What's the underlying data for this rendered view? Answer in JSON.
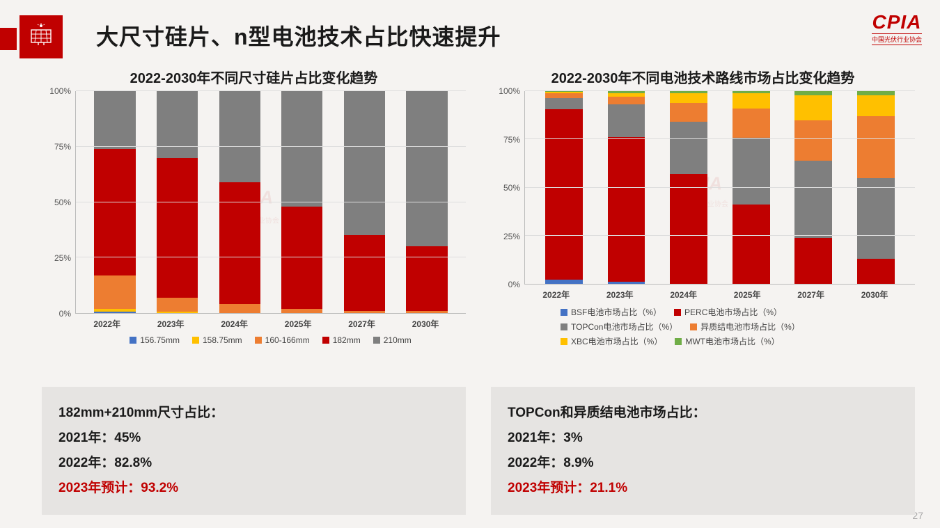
{
  "page": {
    "title": "大尺寸硅片、n型电池技术占比快速提升",
    "page_number": "27",
    "logo_main": "CPIA",
    "logo_sub": "中国光伏行业协会"
  },
  "colors": {
    "accent": "#c00000",
    "bg": "#f5f3f1",
    "footnote_bg": "#e6e4e2",
    "blue": "#4472c4",
    "yellow": "#ffc000",
    "orange": "#ed7d31",
    "red": "#c00000",
    "grey": "#7f7f7f",
    "green": "#70ad47"
  },
  "chart_left": {
    "type": "stacked_bar_100",
    "title": "2022-2030年不同尺寸硅片占比变化趋势",
    "yticks": [
      0,
      25,
      50,
      75,
      100
    ],
    "ytick_labels": [
      "0%",
      "25%",
      "50%",
      "75%",
      "100%"
    ],
    "categories": [
      "2022年",
      "2023年",
      "2024年",
      "2025年",
      "2027年",
      "2030年"
    ],
    "series": [
      {
        "name": "156.75mm",
        "color": "#4472c4",
        "values": [
          0.5,
          0,
          0,
          0,
          0,
          0
        ]
      },
      {
        "name": "158.75mm",
        "color": "#ffc000",
        "values": [
          1.5,
          0.5,
          0,
          0,
          0,
          0
        ]
      },
      {
        "name": "160-166mm",
        "color": "#ed7d31",
        "values": [
          15,
          6.5,
          4,
          2,
          1,
          1
        ]
      },
      {
        "name": "182mm",
        "color": "#c00000",
        "values": [
          57,
          63,
          55,
          46,
          34,
          29
        ]
      },
      {
        "name": "210mm",
        "color": "#7f7f7f",
        "values": [
          26,
          30,
          41,
          52,
          65,
          70
        ]
      }
    ]
  },
  "chart_right": {
    "type": "stacked_bar_100",
    "title": "2022-2030年不同电池技术路线市场占比变化趋势",
    "yticks": [
      0,
      25,
      50,
      75,
      100
    ],
    "ytick_labels": [
      "0%",
      "25%",
      "50%",
      "75%",
      "100%"
    ],
    "categories": [
      "2022年",
      "2023年",
      "2024年",
      "2025年",
      "2027年",
      "2030年"
    ],
    "series": [
      {
        "name": "BSF电池市场占比（%）",
        "color": "#4472c4",
        "values": [
          2,
          1,
          0,
          0,
          0,
          0
        ]
      },
      {
        "name": "PERC电池市场占比（%）",
        "color": "#c00000",
        "values": [
          88.5,
          75,
          57,
          41,
          24,
          13
        ]
      },
      {
        "name": "TOPCon电池市场占比（%）",
        "color": "#7f7f7f",
        "values": [
          6,
          17,
          27,
          35,
          40,
          42
        ]
      },
      {
        "name": "异质结电池市场占比（%）",
        "color": "#ed7d31",
        "values": [
          2.5,
          4,
          10,
          15,
          21,
          32
        ]
      },
      {
        "name": "XBC电池市场占比（%）",
        "color": "#ffc000",
        "values": [
          0.5,
          2,
          5,
          8,
          13,
          11
        ]
      },
      {
        "name": "MWT电池市场占比（%）",
        "color": "#70ad47",
        "values": [
          0.5,
          1,
          1,
          1,
          2,
          2
        ]
      }
    ]
  },
  "footnote_left": {
    "heading": "182mm+210mm尺寸占比：",
    "line1": "2021年：45%",
    "line2": "2022年：82.8%",
    "line3": "2023年预计：93.2%"
  },
  "footnote_right": {
    "heading": "TOPCon和异质结电池市场占比：",
    "line1": "2021年：3%",
    "line2": "2022年：8.9%",
    "line3": "2023年预计：21.1%"
  }
}
